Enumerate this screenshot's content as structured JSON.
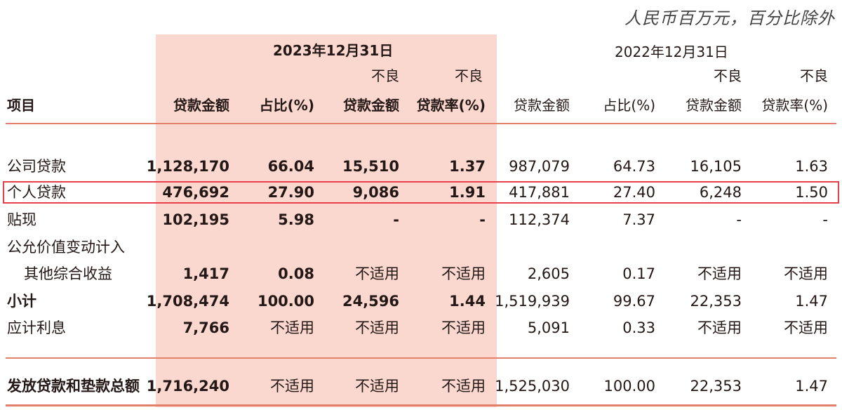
{
  "unit_note": "人民币百万元，百分比除外",
  "periods": [
    "2023年12月31日",
    "2022年12月31日"
  ],
  "headers": {
    "item": "项目",
    "col_top": [
      "",
      "",
      "不良",
      "不良",
      "",
      "",
      "不良",
      "不良"
    ],
    "col_bottom": [
      "贷款金额",
      "占比(%)",
      "贷款金额",
      "贷款率(%)",
      "贷款金额",
      "占比(%)",
      "贷款金额",
      "贷款率(%)"
    ]
  },
  "rows": [
    {
      "label": "公司贷款",
      "values": [
        "1,128,170",
        "66.04",
        "15,510",
        "1.37",
        "987,079",
        "64.73",
        "16,105",
        "1.63"
      ]
    },
    {
      "label": "个人贷款",
      "values": [
        "476,692",
        "27.90",
        "9,086",
        "1.91",
        "417,881",
        "27.40",
        "6,248",
        "1.50"
      ]
    },
    {
      "label": "贴现",
      "values": [
        "102,195",
        "5.98",
        "-",
        "-",
        "112,374",
        "7.37",
        "-",
        "-"
      ]
    },
    {
      "label": "公允价值变动计入",
      "values": [
        "",
        "",
        "",
        "",
        "",
        "",
        "",
        ""
      ]
    },
    {
      "label": "其他综合收益",
      "values": [
        "1,417",
        "0.08",
        "不适用",
        "不适用",
        "2,605",
        "0.17",
        "不适用",
        "不适用"
      ]
    },
    {
      "label": "小计",
      "values": [
        "1,708,474",
        "100.00",
        "24,596",
        "1.44",
        "1,519,939",
        "99.67",
        "22,353",
        "1.47"
      ]
    },
    {
      "label": "应计利息",
      "values": [
        "7,766",
        "不适用",
        "不适用",
        "不适用",
        "5,091",
        "0.33",
        "不适用",
        "不适用"
      ]
    },
    {
      "label": "发放贷款和垫款总额",
      "values": [
        "1,716,240",
        "不适用",
        "不适用",
        "不适用",
        "1,525,030",
        "100.00",
        "22,353",
        "1.47"
      ]
    }
  ],
  "highlight_color": "#e8404a",
  "shade_color": "#fbd8cf",
  "rule_color": "#e3806b"
}
